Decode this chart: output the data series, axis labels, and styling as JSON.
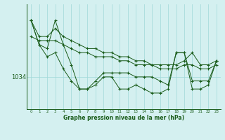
{
  "xlabel": "Graphe pression niveau de la mer (hPa)",
  "background_color": "#d4f0f0",
  "grid_color": "#a0d8d8",
  "line_color": "#1a5c1a",
  "ytick_label": "1034",
  "ytick_value": 1034,
  "xticklabels": [
    "0",
    "1",
    "2",
    "3",
    "4",
    "5",
    "6",
    "7",
    "8",
    "9",
    "10",
    "11",
    "12",
    "13",
    "14",
    "15",
    "16",
    "17",
    "18",
    "19",
    "20",
    "21",
    "22",
    "23"
  ],
  "series": [
    [
      1048,
      1044,
      1044,
      1046,
      1044,
      1043,
      1042,
      1041,
      1041,
      1040,
      1040,
      1039,
      1039,
      1038,
      1038,
      1037,
      1037,
      1037,
      1037,
      1038,
      1040,
      1037,
      1037,
      1038
    ],
    [
      1044,
      1043,
      1043,
      1043,
      1042,
      1041,
      1040,
      1040,
      1039,
      1039,
      1039,
      1038,
      1038,
      1037,
      1037,
      1037,
      1036,
      1036,
      1036,
      1037,
      1037,
      1036,
      1036,
      1037
    ],
    [
      1048,
      1042,
      1041,
      1048,
      1042,
      1037,
      1031,
      1031,
      1033,
      1035,
      1035,
      1035,
      1035,
      1034,
      1034,
      1034,
      1033,
      1032,
      1040,
      1040,
      1033,
      1033,
      1033,
      1038
    ],
    [
      1048,
      1042,
      1039,
      1040,
      1036,
      1033,
      1031,
      1031,
      1032,
      1034,
      1034,
      1031,
      1031,
      1032,
      1031,
      1030,
      1030,
      1031,
      1040,
      1040,
      1031,
      1031,
      1032,
      1038
    ]
  ],
  "ylim_min": 1026,
  "ylim_max": 1052,
  "figwidth": 3.2,
  "figheight": 2.0,
  "dpi": 100
}
